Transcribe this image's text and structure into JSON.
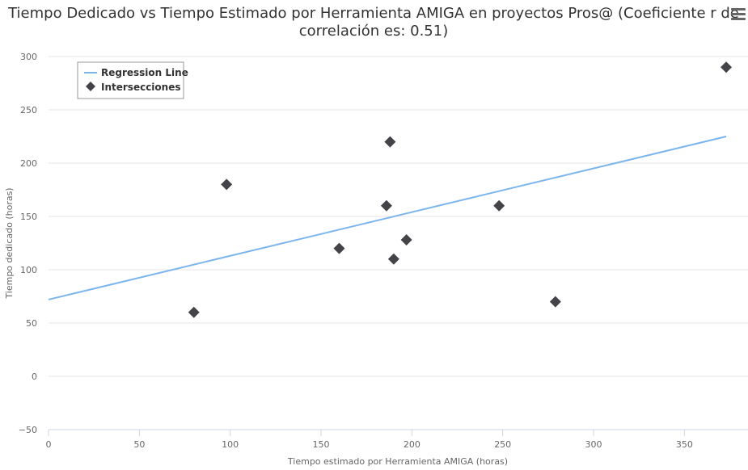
{
  "chart_data": {
    "type": "scatter",
    "title_line1": "Tiempo Dedicado vs Tiempo Estimado por Herramienta AMIGA en proyectos Pros@ (Coeficiente r de",
    "title_line2": "correlación es: 0.51)",
    "xlabel": "Tiempo estimado por Herramienta AMIGA (horas)",
    "ylabel": "Tiempo dedicado (horas)",
    "xlim": [
      0,
      385
    ],
    "ylim": [
      -50,
      300
    ],
    "xticks": [
      "0",
      "50",
      "100",
      "150",
      "200",
      "250",
      "300",
      "350"
    ],
    "xtick_values": [
      0,
      50,
      100,
      150,
      200,
      250,
      300,
      350
    ],
    "yticks": [
      "300",
      "250",
      "200",
      "150",
      "100",
      "50",
      "0",
      "−50"
    ],
    "ytick_values": [
      300,
      250,
      200,
      150,
      100,
      50,
      0,
      -50
    ],
    "grid": true,
    "legend_position": "top-left",
    "series": [
      {
        "name": "Regression Line",
        "kind": "line",
        "color": "#7cb5ec",
        "points": [
          [
            0,
            72
          ],
          [
            373,
            225
          ]
        ]
      },
      {
        "name": "Intersecciones",
        "kind": "scatter",
        "marker": "diamond",
        "color": "#434348",
        "points": [
          [
            80,
            60
          ],
          [
            98,
            180
          ],
          [
            160,
            120
          ],
          [
            186,
            160
          ],
          [
            188,
            220
          ],
          [
            190,
            110
          ],
          [
            197,
            128
          ],
          [
            248,
            160
          ],
          [
            279,
            70
          ],
          [
            373,
            290
          ]
        ]
      }
    ]
  },
  "colors": {
    "grid": "#e6e6e6",
    "axis": "#ccd6eb"
  },
  "menu_icon": "hamburger-menu-icon"
}
